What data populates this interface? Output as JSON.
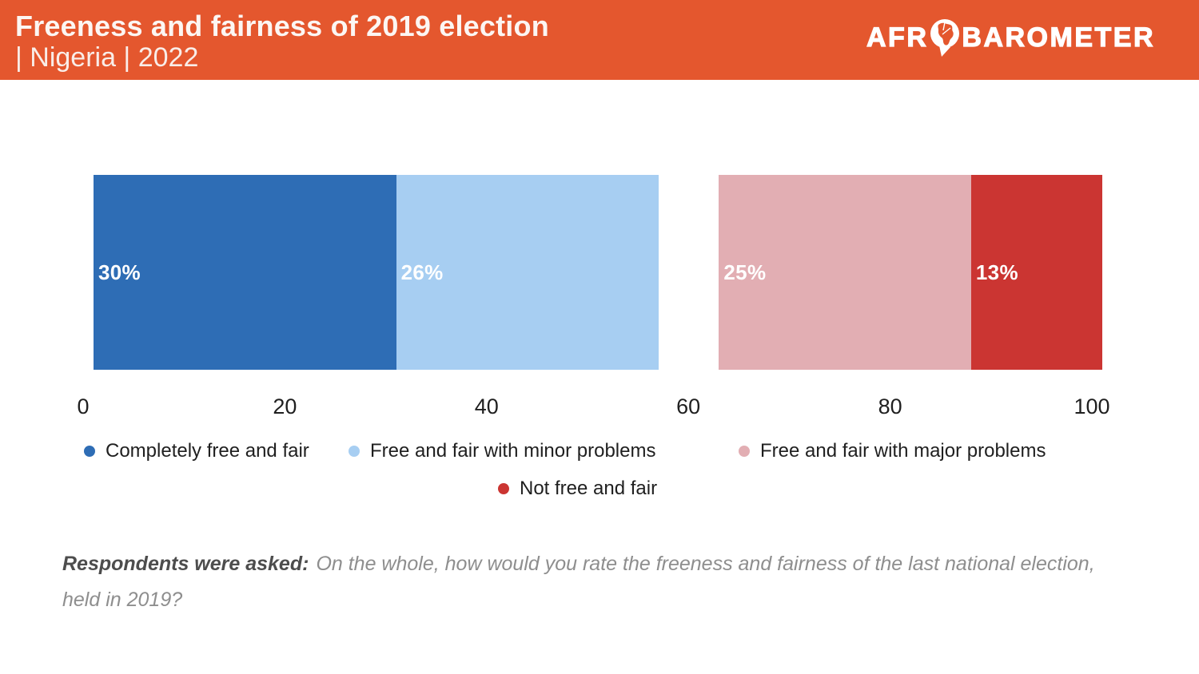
{
  "header": {
    "title": "Freeness and fairness of 2019 election",
    "subtitle": "| Nigeria | 2022",
    "brand": {
      "prefix": "AFR",
      "suffix": "BAROMETER"
    }
  },
  "colors": {
    "header_orange": "#E4572E",
    "dark_blue": "#2E6DB5",
    "light_blue": "#A7CEF2",
    "pink": "#E2AEB3",
    "red": "#CB3532",
    "text_dark": "#1F1F1F",
    "footnote_lead": "#4D4D4D",
    "footnote_text": "#8E8E8E"
  },
  "chart_data": {
    "type": "bar",
    "subtype": "horizontal-stacked",
    "title": "Freeness and fairness of 2019 election | Nigeria | 2022",
    "xlabel": "",
    "ylabel": "",
    "xlim": [
      0,
      100
    ],
    "x_axis": {
      "ticks": [
        0,
        20,
        40,
        60,
        80,
        100
      ]
    },
    "grid": false,
    "legend_position": "bottom-center",
    "segments": [
      {
        "label": "Completely free and fair",
        "value": 30,
        "value_label": "30%",
        "color": "#2E6DB5",
        "gap": false
      },
      {
        "label": "Free and fair with minor problems",
        "value": 26,
        "value_label": "26%",
        "color": "#A7CEF2",
        "gap": false
      },
      {
        "label": "",
        "value": 6,
        "value_label": "",
        "color": "transparent",
        "gap": true
      },
      {
        "label": "Free and fair with major problems",
        "value": 25,
        "value_label": "25%",
        "color": "#E2AEB3",
        "gap": false
      },
      {
        "label": "Not free and fair",
        "value": 13,
        "value_label": "13%",
        "color": "#CB3532",
        "gap": false
      }
    ]
  },
  "legend": {
    "row1": [
      {
        "label": "Completely free and fair",
        "color": "#2E6DB5"
      },
      {
        "label": "Free and fair with minor problems",
        "color": "#A7CEF2"
      },
      {
        "label": "Free and fair with major problems",
        "color": "#E2AEB3"
      }
    ],
    "row2": [
      {
        "label": "Not free and fair",
        "color": "#CB3532"
      }
    ]
  },
  "footnote": {
    "lead": "Respondents were asked:",
    "question": "On the whole, how would you rate the freeness and fairness of the last national election, held in 2019?"
  }
}
